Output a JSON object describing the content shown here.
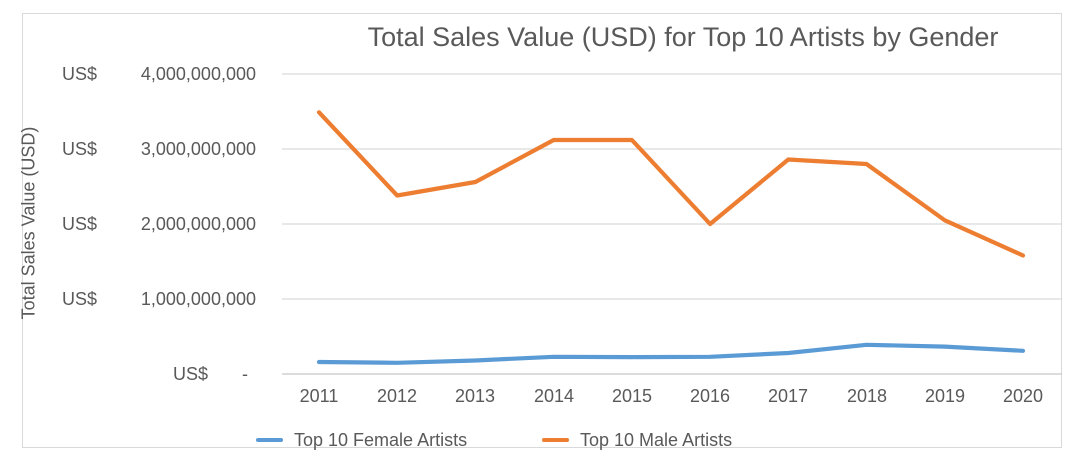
{
  "chart_data": {
    "type": "line",
    "title": "Total Sales Value (USD) for Top 10 Artists by Gender",
    "xlabel": "",
    "ylabel": "Total Sales Value (USD)",
    "categories": [
      "2011",
      "2012",
      "2013",
      "2014",
      "2015",
      "2016",
      "2017",
      "2018",
      "2019",
      "2020"
    ],
    "series": [
      {
        "name": "Top 10 Female Artists",
        "color": "#5B9BD5",
        "values": [
          160000000,
          150000000,
          180000000,
          230000000,
          225000000,
          230000000,
          280000000,
          390000000,
          365000000,
          310000000
        ]
      },
      {
        "name": "Top 10 Male Artists",
        "color": "#ED7D31",
        "values": [
          3490000000,
          2380000000,
          2560000000,
          3120000000,
          3120000000,
          2000000000,
          2860000000,
          2800000000,
          2050000000,
          1580000000
        ]
      }
    ],
    "ylim": [
      0,
      4000000000
    ],
    "y_tick_values": [
      4000000000,
      3000000000,
      2000000000,
      1000000000,
      0
    ],
    "y_tick_display": [
      {
        "currency": "US$",
        "number": "4,000,000,000"
      },
      {
        "currency": "US$",
        "number": "3,000,000,000"
      },
      {
        "currency": "US$",
        "number": "2,000,000,000"
      },
      {
        "currency": "US$",
        "number": "1,000,000,000"
      },
      {
        "currency": "US$",
        "number": "-"
      }
    ],
    "grid": true,
    "legend_position": "bottom-left",
    "colors": {
      "text": "#595959",
      "gridline": "#D9D9D9",
      "axis_line": "#C6C6C6",
      "frame_border": "#D9D9D9",
      "background": "#FFFFFF"
    }
  }
}
